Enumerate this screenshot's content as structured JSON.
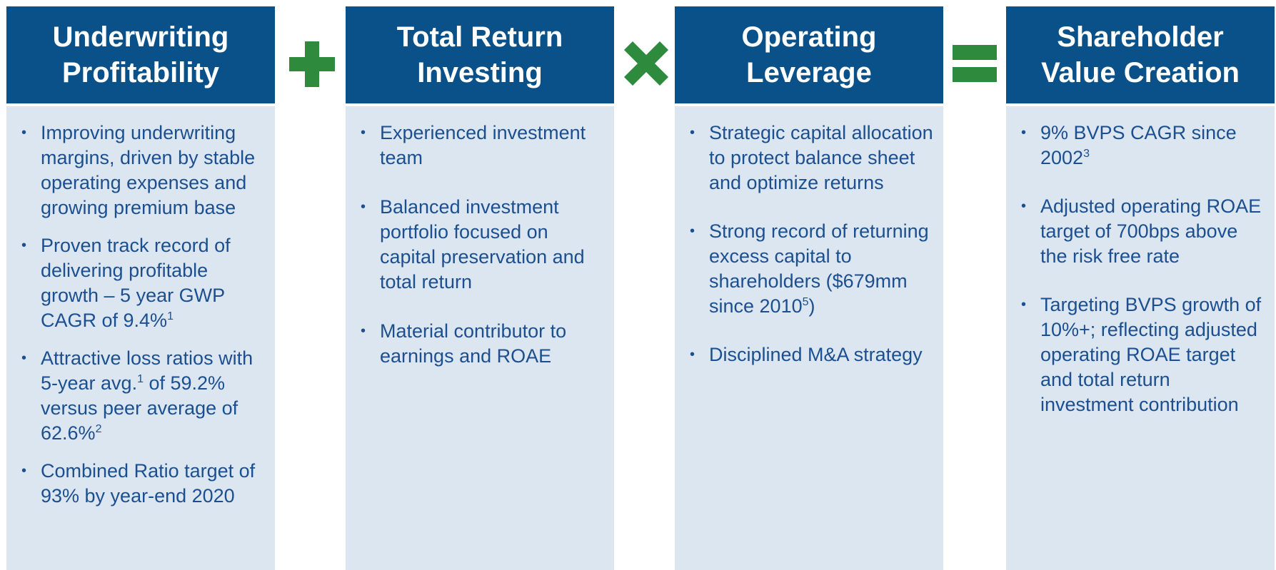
{
  "columns": [
    {
      "title_lines": [
        "Underwriting",
        "Profitability"
      ],
      "bullets": [
        [
          "Improving underwriting margins, driven by stable operating expenses and growing premium base"
        ],
        [
          "Proven track record of delivering profitable growth – 5 year GWP CAGR of 9.4%",
          "1"
        ],
        [
          "Attractive loss ratios with 5-year avg.",
          "1",
          " of 59.2% versus peer average of 62.6%",
          "2"
        ],
        [
          "Combined Ratio target of 93% by year-end 2020"
        ]
      ]
    },
    {
      "title_lines": [
        "Total Return",
        "Investing"
      ],
      "bullets": [
        [
          "Experienced investment team"
        ],
        [
          "Balanced investment portfolio focused on capital preservation and total return"
        ],
        [
          "Material contributor to earnings and ROAE"
        ]
      ]
    },
    {
      "title_lines": [
        "Operating",
        "Leverage"
      ],
      "bullets": [
        [
          "Strategic capital allocation to protect balance sheet and optimize returns"
        ],
        [
          "Strong record of returning excess capital to shareholders ($679mm since 2010",
          "5",
          ")"
        ],
        [
          "Disciplined M&A strategy"
        ]
      ]
    },
    {
      "title_lines": [
        "Shareholder",
        "Value Creation"
      ],
      "bullets": [
        [
          "9% BVPS CAGR since 2002",
          "3"
        ],
        [
          "Adjusted operating ROAE target of 700bps above the risk free rate"
        ],
        [
          "Targeting BVPS growth of 10%+; reflecting adjusted operating ROAE target and total return investment contribution"
        ]
      ]
    }
  ]
}
